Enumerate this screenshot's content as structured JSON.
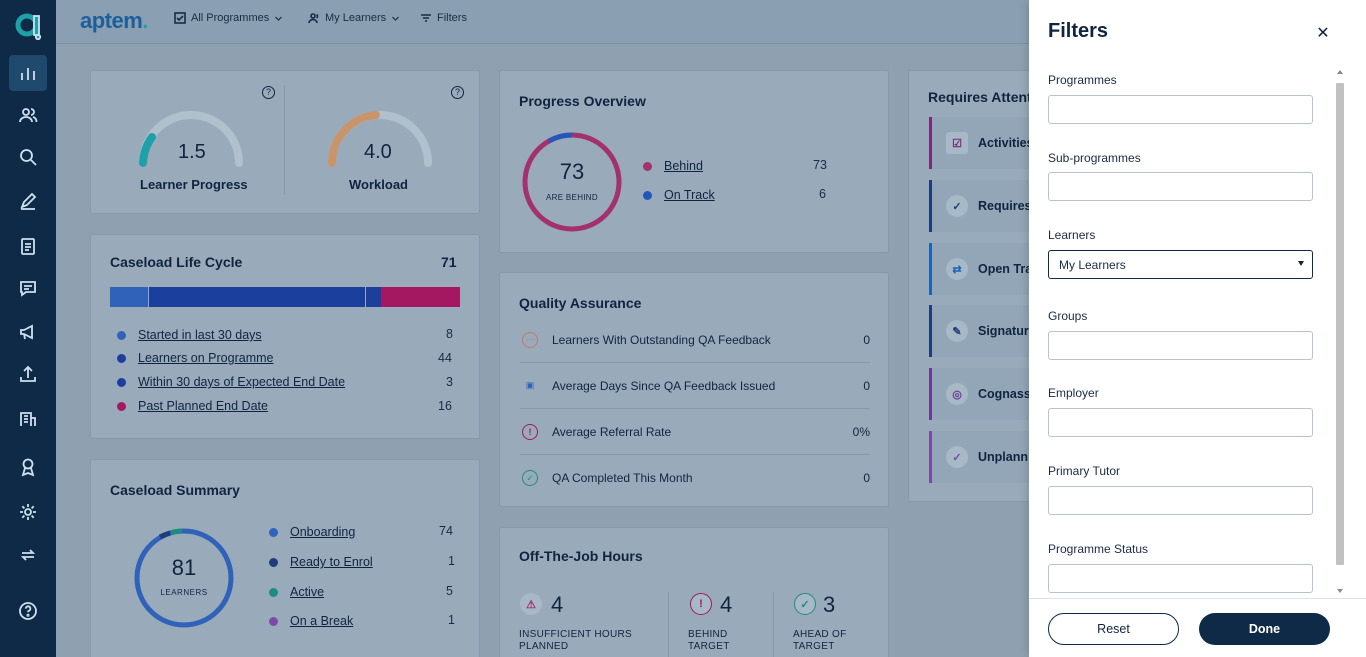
{
  "topbar": {
    "brand": "aptem",
    "programmes_btn": "All Programmes",
    "learners_btn": "My Learners",
    "filters_btn": "Filters"
  },
  "gauges": {
    "learner_progress": {
      "value": "1.5",
      "label": "Learner Progress"
    },
    "workload": {
      "value": "4.0",
      "label": "Workload"
    },
    "help": "?"
  },
  "progress_overview": {
    "title": "Progress Overview",
    "center_value": "73",
    "center_label": "ARE BEHIND",
    "items": [
      {
        "label": "Behind",
        "count": "73",
        "color": "#a3306f"
      },
      {
        "label": "On Track",
        "count": "6",
        "color": "#2357b8"
      }
    ]
  },
  "caseload_life_cycle": {
    "title": "Caseload Life Cycle",
    "total": "71",
    "items": [
      {
        "label": "Started in last 30 days",
        "count": "8",
        "color": "#2f62b8"
      },
      {
        "label": "Learners on Programme",
        "count": "44",
        "color": "#1a3f9c"
      },
      {
        "label": "Within 30 days of Expected End Date",
        "count": "3",
        "color": "#1a3f9c"
      },
      {
        "label": "Past Planned End Date",
        "count": "16",
        "color": "#a31860"
      }
    ]
  },
  "quality_assurance": {
    "title": "Quality Assurance",
    "rows": [
      {
        "label": "Learners With Outstanding QA Feedback",
        "value": "0",
        "icon": "⋯"
      },
      {
        "label": "Average Days Since QA Feedback Issued",
        "value": "0",
        "icon": "▣"
      },
      {
        "label": "Average Referral Rate",
        "value": "0%",
        "icon": "!"
      },
      {
        "label": "QA Completed This Month",
        "value": "0",
        "icon": "✓"
      }
    ]
  },
  "requires_attention": {
    "title": "Requires Attention",
    "items": [
      {
        "label": "Activities",
        "icon": "☑",
        "color": "#7a2b78"
      },
      {
        "label": "Requires",
        "icon": "✓",
        "color": "#1f3d78"
      },
      {
        "label": "Open Tra",
        "icon": "⇄",
        "color": "#1e63b5"
      },
      {
        "label": "Signatur",
        "icon": "✎",
        "color": "#1f3d78"
      },
      {
        "label": "Cognass",
        "icon": "◎",
        "color": "#6a3a94"
      },
      {
        "label": "Unplann",
        "icon": "✓",
        "color": "#7a4aa6"
      }
    ]
  },
  "caseload_summary": {
    "title": "Caseload Summary",
    "center_value": "81",
    "center_label": "LEARNERS",
    "items": [
      {
        "label": "Onboarding",
        "count": "74",
        "color": "#2f62b8"
      },
      {
        "label": "Ready to Enrol",
        "count": "1",
        "color": "#1f3d78"
      },
      {
        "label": "Active",
        "count": "5",
        "color": "#1f8c84"
      },
      {
        "label": "On a Break",
        "count": "1",
        "color": "#7a4aa6"
      }
    ]
  },
  "otj": {
    "title": "Off-The-Job Hours",
    "items": [
      {
        "value": "4",
        "label_1": "INSUFFICIENT HOURS",
        "label_2": "PLANNED",
        "icon": "⚠"
      },
      {
        "value": "4",
        "label_1": "BEHIND",
        "label_2": "TARGET",
        "icon": "!"
      },
      {
        "value": "3",
        "label_1": "AHEAD OF",
        "label_2": "TARGET",
        "icon": "✓"
      }
    ]
  },
  "filters_panel": {
    "title": "Filters",
    "close": "✕",
    "fields": [
      {
        "label": "Programmes",
        "value": ""
      },
      {
        "label": "Sub-programmes",
        "value": ""
      },
      {
        "label": "Learners",
        "value": "My Learners"
      },
      {
        "label": "Groups",
        "value": ""
      },
      {
        "label": "Employer",
        "value": ""
      },
      {
        "label": "Primary Tutor",
        "value": ""
      },
      {
        "label": "Programme Status",
        "value": ""
      }
    ],
    "reset_label": "Reset",
    "done_label": "Done"
  }
}
